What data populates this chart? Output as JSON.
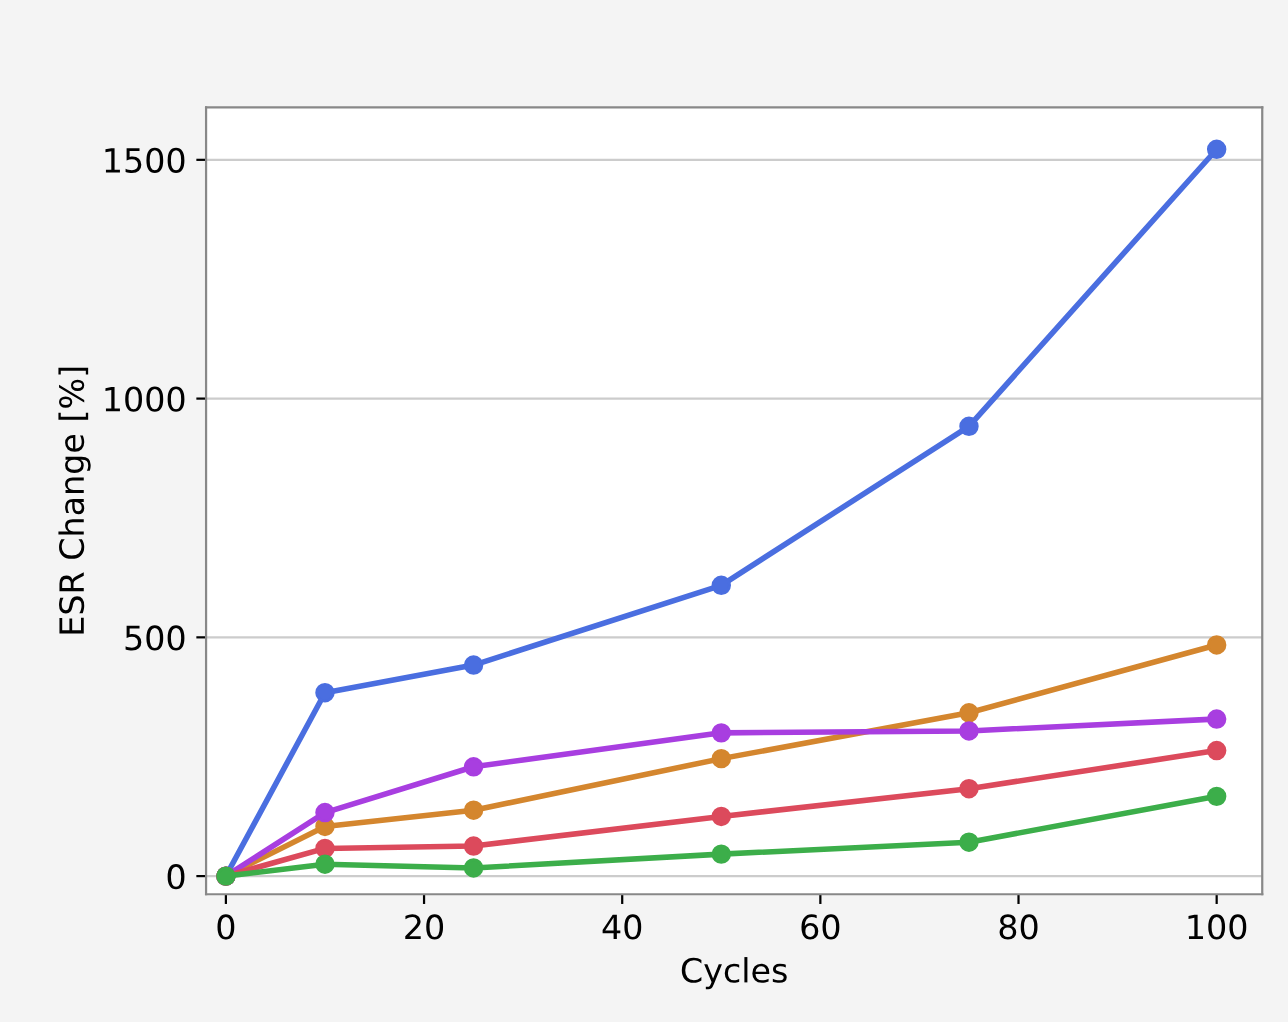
{
  "chart_data": {
    "type": "line",
    "xlabel": "Cycles",
    "ylabel": "ESR Change [%]",
    "x": [
      0,
      10,
      25,
      50,
      75,
      100
    ],
    "series": [
      {
        "color": "#4a6ee0",
        "values": [
          0,
          384,
          442,
          609,
          942,
          1522
        ]
      },
      {
        "color": "#d4862e",
        "values": [
          0,
          104,
          138,
          246,
          342,
          484
        ]
      },
      {
        "color": "#a83ee0",
        "values": [
          0,
          133,
          229,
          300,
          304,
          329
        ]
      },
      {
        "color": "#dc4a5c",
        "values": [
          0,
          58,
          63,
          125,
          183,
          263
        ]
      },
      {
        "color": "#3cae4a",
        "values": [
          0,
          25,
          17,
          46,
          71,
          167
        ]
      }
    ],
    "xlim": [
      -2,
      104.6
    ],
    "xticks": [
      0,
      20,
      40,
      60,
      80,
      100
    ],
    "ylim": [
      -38,
      1610
    ],
    "yticks": [
      0,
      500,
      1000,
      1500
    ],
    "grid": "y",
    "marker": "circle",
    "line_style": "solid",
    "legend": false
  }
}
